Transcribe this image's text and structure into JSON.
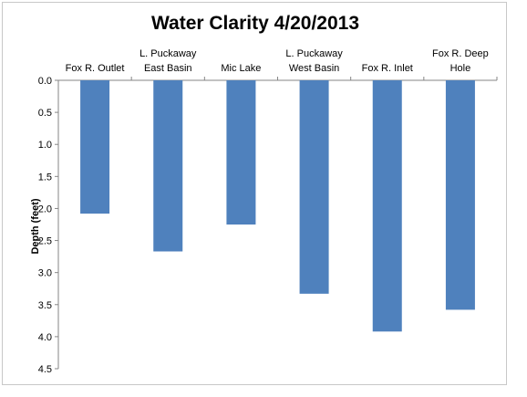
{
  "chart_data": {
    "type": "bar",
    "title": "Water Clarity 4/20/2013",
    "xlabel": "",
    "ylabel": "Depth (feet)",
    "ylim": [
      0,
      4.5
    ],
    "y_inverted": true,
    "x_axis_position": "top",
    "grid": false,
    "legend": "none",
    "yticks": [
      "0.0",
      "0.5",
      "1.0",
      "1.5",
      "2.0",
      "2.5",
      "3.0",
      "3.5",
      "4.0",
      "4.5"
    ],
    "categories": [
      [
        "Fox R. Outlet"
      ],
      [
        "L. Puckaway",
        "East Basin"
      ],
      [
        "Mic Lake"
      ],
      [
        "L. Puckaway",
        "West Basin"
      ],
      [
        "Fox R. Inlet"
      ],
      [
        "Fox R. Deep",
        "Hole"
      ]
    ],
    "values": [
      2.08,
      2.67,
      2.25,
      3.33,
      3.92,
      3.58
    ],
    "bar_color": "#4f81bd"
  }
}
